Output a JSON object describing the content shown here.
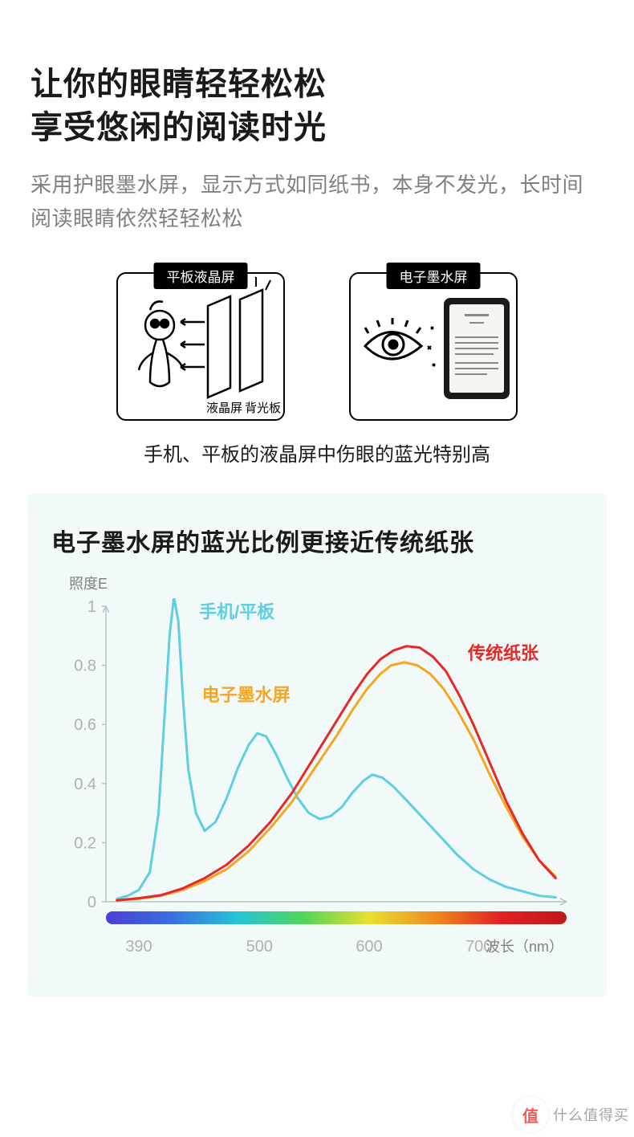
{
  "header": {
    "title_line1": "让你的眼睛轻轻松松",
    "title_line2": "享受悠闲的阅读时光",
    "subtitle": "采用护眼墨水屏，显示方式如同纸书，本身不发光，长时间阅读眼睛依然轻轻松松"
  },
  "compare": {
    "left_label": "平板液晶屏",
    "right_label": "电子墨水屏",
    "left_inner_label1": "液晶屏",
    "left_inner_label2": "背光板",
    "caption": "手机、平板的液晶屏中伤眼的蓝光特别高"
  },
  "chart": {
    "title": "电子墨水屏的蓝光比例更接近传统纸张",
    "type": "line",
    "y_axis_label": "照度E",
    "x_axis_label": "波长（nm）",
    "background_color": "#f1f9f9",
    "plot_bg": "#f1f9f9",
    "axis_color": "#b8c4c4",
    "tick_label_color": "#b0b0b0",
    "tick_fontsize": 20,
    "axis_label_fontsize": 18,
    "axis_label_color": "#808080",
    "ylim": [
      0,
      1
    ],
    "ytick_step": 0.2,
    "yticks": [
      0,
      0.2,
      0.4,
      0.6,
      0.8,
      1
    ],
    "xlim": [
      360,
      780
    ],
    "xticks": [
      390,
      500,
      600,
      700
    ],
    "line_width": 3,
    "spectrum_bar": {
      "height": 16,
      "stops": [
        "#4a3fd6",
        "#3b6fe0",
        "#24c5d6",
        "#4fd65a",
        "#e8e030",
        "#f08a1e",
        "#e02222",
        "#c01818"
      ]
    },
    "series": [
      {
        "name": "phone_tablet",
        "label": "手机/平板",
        "color": "#5ecfe0",
        "label_pos": {
          "x": 445,
          "y": 0.96
        },
        "points": [
          [
            370,
            0.01
          ],
          [
            380,
            0.02
          ],
          [
            390,
            0.04
          ],
          [
            400,
            0.1
          ],
          [
            408,
            0.3
          ],
          [
            413,
            0.6
          ],
          [
            418,
            0.9
          ],
          [
            422,
            1.03
          ],
          [
            426,
            0.95
          ],
          [
            430,
            0.7
          ],
          [
            435,
            0.45
          ],
          [
            442,
            0.3
          ],
          [
            450,
            0.24
          ],
          [
            460,
            0.27
          ],
          [
            470,
            0.35
          ],
          [
            480,
            0.45
          ],
          [
            490,
            0.53
          ],
          [
            498,
            0.57
          ],
          [
            506,
            0.56
          ],
          [
            515,
            0.5
          ],
          [
            525,
            0.42
          ],
          [
            535,
            0.35
          ],
          [
            545,
            0.3
          ],
          [
            555,
            0.28
          ],
          [
            565,
            0.29
          ],
          [
            575,
            0.32
          ],
          [
            585,
            0.37
          ],
          [
            595,
            0.41
          ],
          [
            603,
            0.43
          ],
          [
            612,
            0.42
          ],
          [
            622,
            0.39
          ],
          [
            635,
            0.34
          ],
          [
            650,
            0.28
          ],
          [
            665,
            0.22
          ],
          [
            680,
            0.16
          ],
          [
            695,
            0.11
          ],
          [
            710,
            0.075
          ],
          [
            725,
            0.05
          ],
          [
            740,
            0.035
          ],
          [
            755,
            0.02
          ],
          [
            770,
            0.015
          ]
        ]
      },
      {
        "name": "eink",
        "label": "电子墨水屏",
        "color": "#f5a623",
        "label_pos": {
          "x": 528,
          "y": 0.68
        },
        "points": [
          [
            370,
            0.005
          ],
          [
            390,
            0.01
          ],
          [
            410,
            0.02
          ],
          [
            430,
            0.04
          ],
          [
            450,
            0.07
          ],
          [
            470,
            0.11
          ],
          [
            490,
            0.17
          ],
          [
            510,
            0.25
          ],
          [
            530,
            0.34
          ],
          [
            550,
            0.45
          ],
          [
            570,
            0.56
          ],
          [
            585,
            0.65
          ],
          [
            598,
            0.72
          ],
          [
            610,
            0.77
          ],
          [
            620,
            0.8
          ],
          [
            632,
            0.81
          ],
          [
            644,
            0.8
          ],
          [
            656,
            0.77
          ],
          [
            668,
            0.72
          ],
          [
            680,
            0.65
          ],
          [
            695,
            0.55
          ],
          [
            710,
            0.43
          ],
          [
            725,
            0.32
          ],
          [
            740,
            0.22
          ],
          [
            755,
            0.14
          ],
          [
            770,
            0.085
          ]
        ]
      },
      {
        "name": "paper",
        "label": "传统纸张",
        "color": "#e62828",
        "label_pos": {
          "x": 690,
          "y": 0.82
        },
        "points": [
          [
            370,
            0.005
          ],
          [
            390,
            0.012
          ],
          [
            410,
            0.022
          ],
          [
            430,
            0.045
          ],
          [
            450,
            0.08
          ],
          [
            470,
            0.125
          ],
          [
            490,
            0.19
          ],
          [
            510,
            0.27
          ],
          [
            530,
            0.37
          ],
          [
            550,
            0.49
          ],
          [
            570,
            0.61
          ],
          [
            585,
            0.7
          ],
          [
            598,
            0.77
          ],
          [
            610,
            0.82
          ],
          [
            622,
            0.85
          ],
          [
            634,
            0.865
          ],
          [
            646,
            0.86
          ],
          [
            658,
            0.83
          ],
          [
            670,
            0.78
          ],
          [
            682,
            0.7
          ],
          [
            695,
            0.6
          ],
          [
            710,
            0.47
          ],
          [
            725,
            0.34
          ],
          [
            740,
            0.23
          ],
          [
            755,
            0.14
          ],
          [
            770,
            0.08
          ]
        ]
      }
    ]
  },
  "watermark": {
    "icon_text": "值",
    "text": "什么值得买"
  }
}
